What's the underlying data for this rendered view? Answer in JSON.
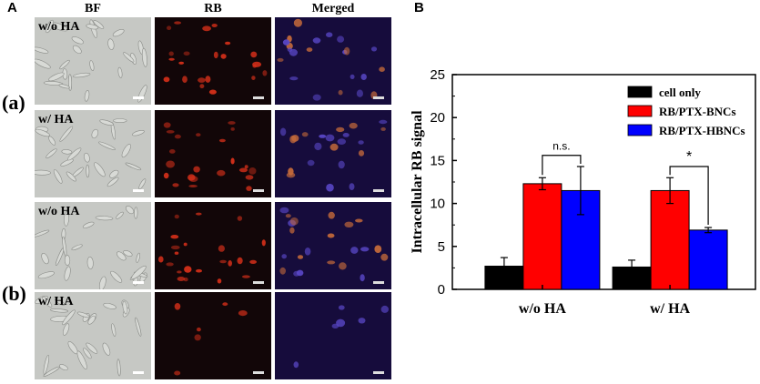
{
  "figure": {
    "panel_a_letter": "A",
    "panel_b_letter": "B",
    "column_headers": [
      "BF",
      "RB",
      "Merged"
    ],
    "row_group_labels": [
      "(a)",
      "(b)"
    ],
    "tile_labels": [
      "w/o HA",
      "w/  HA",
      "w/o HA",
      "w/ HA"
    ],
    "colors": {
      "bf_background": "#c6c8c4",
      "fluor_background": "#120608",
      "rb_signal": "#d8301a",
      "merged_background": "#160c3c",
      "merged_nuclei": "#5a48c8"
    }
  },
  "chart_data": {
    "type": "bar",
    "ylabel": "Intracellular RB signal",
    "ylim": [
      0,
      25
    ],
    "yticks": [
      0,
      5,
      10,
      15,
      20,
      25
    ],
    "categories": [
      "w/o HA",
      "w/  HA"
    ],
    "series": [
      {
        "name": "cell only",
        "color": "#000000",
        "values": [
          2.7,
          2.6
        ],
        "errors": [
          1.0,
          0.8
        ]
      },
      {
        "name": "RB/PTX-BNCs",
        "color": "#ff0000",
        "values": [
          12.3,
          11.5
        ],
        "errors": [
          0.7,
          1.5
        ]
      },
      {
        "name": "RB/PTX-HBNCs",
        "color": "#0000ff",
        "values": [
          11.5,
          6.9
        ],
        "errors": [
          2.8,
          0.3
        ]
      }
    ],
    "legend_position": "top-right",
    "grid": false,
    "annotations": [
      {
        "text": "n.s.",
        "category": 0
      },
      {
        "text": "*",
        "category": 1
      }
    ]
  }
}
